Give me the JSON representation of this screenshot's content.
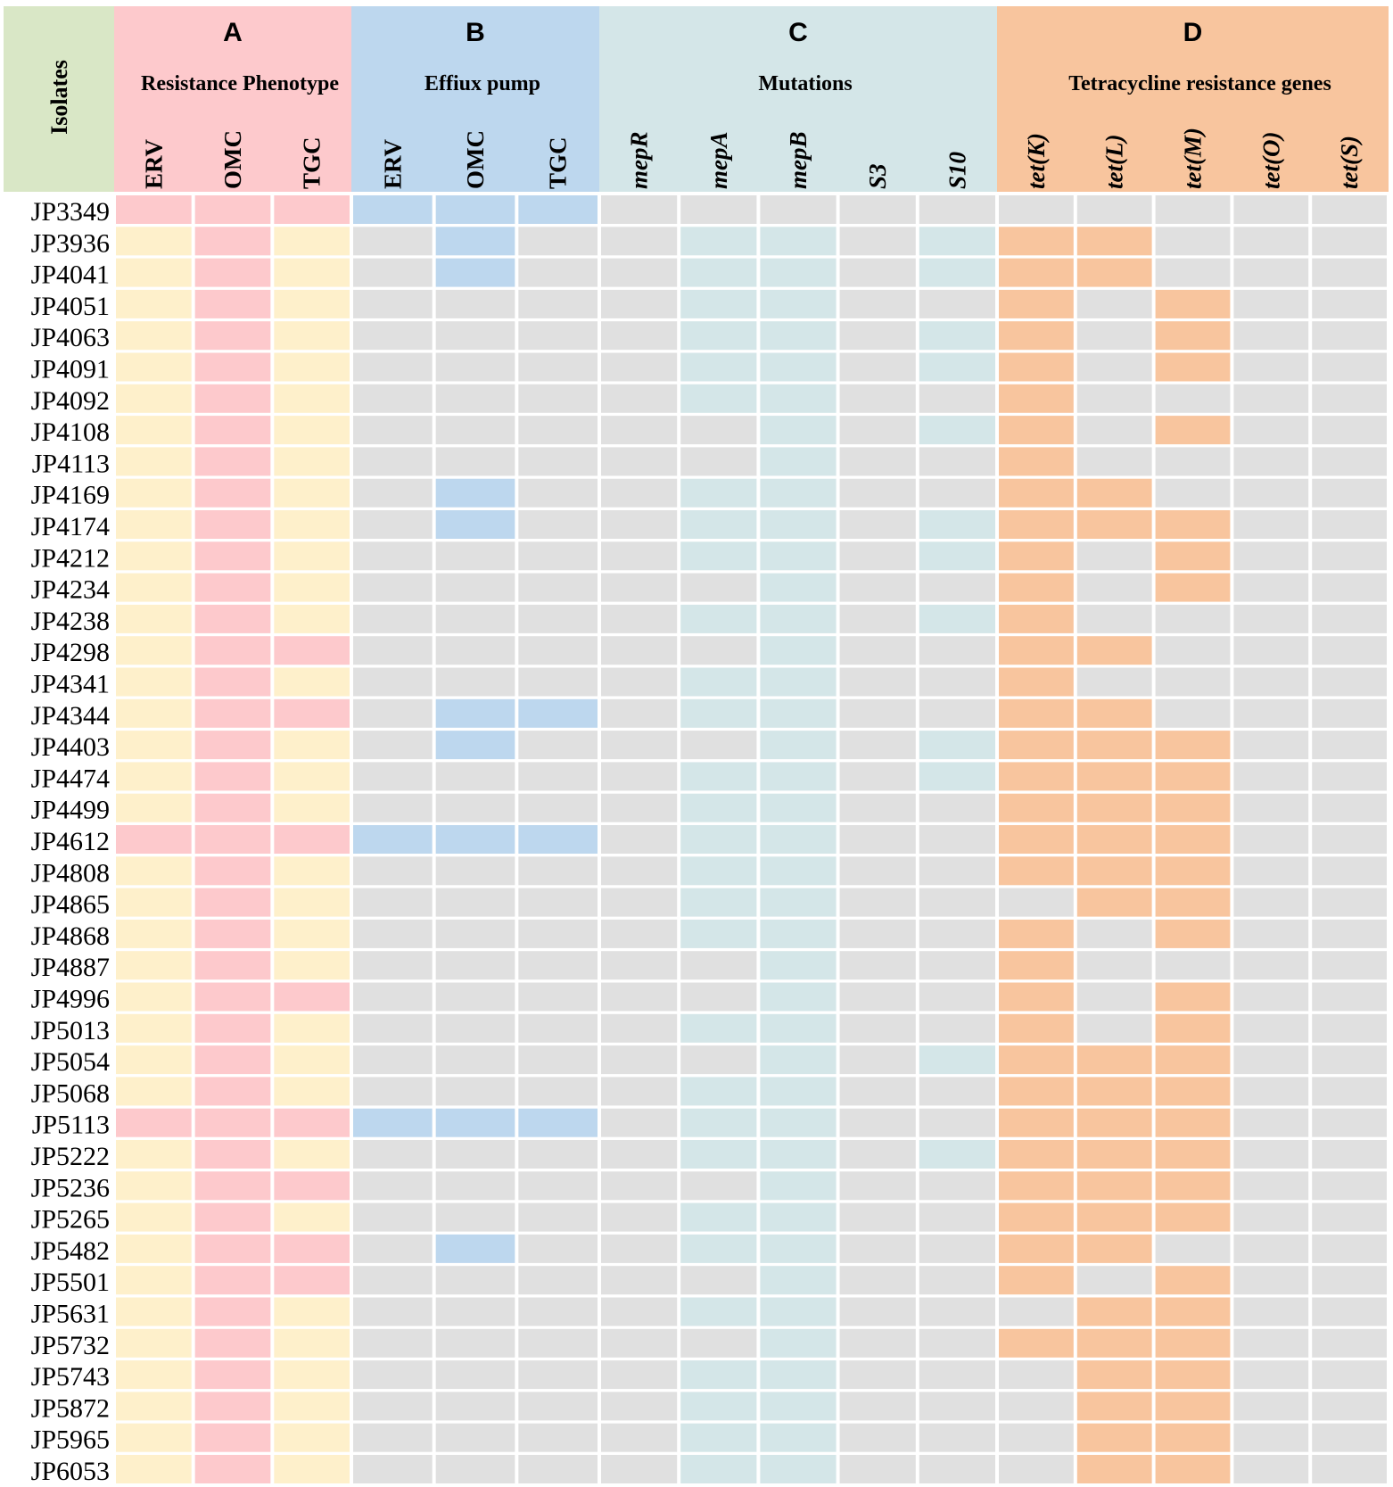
{
  "chart_data": {
    "type": "heatmap",
    "isolates_label": "Isolates",
    "groups": [
      {
        "letter": "A",
        "title": "Resistance Phenotype",
        "columns": [
          "ERV",
          "OMC",
          "TGC"
        ],
        "italic": false,
        "on_color": "#fdc9cc",
        "off_color": "#fef0cb"
      },
      {
        "letter": "B",
        "title": "Effiux pump",
        "columns": [
          "ERV",
          "OMC",
          "TGC"
        ],
        "italic": false,
        "on_color": "#bdd7ee",
        "off_color": "#e0e0e0"
      },
      {
        "letter": "C",
        "title": "Mutations",
        "columns": [
          "mepR",
          "mepA",
          "mepB",
          "S3",
          "S10"
        ],
        "italic": true,
        "on_color": "#d4e6e8",
        "off_color": "#e0e0e0"
      },
      {
        "letter": "D",
        "title": "Tetracycline resistance genes",
        "columns": [
          "tet(K)",
          "tet(L)",
          "tet(M)",
          "tet(O)",
          "tet(S)"
        ],
        "italic": true,
        "on_color": "#f8c59e",
        "off_color": "#e0e0e0"
      }
    ],
    "header_colors": {
      "isolates": "#d9e7c6",
      "A": "#fdc9cc",
      "B": "#bdd7ee",
      "C": "#d4e6e8",
      "D": "#f8c59e"
    },
    "rows": [
      {
        "isolate": "JP3349",
        "values": [
          1,
          1,
          1,
          1,
          1,
          1,
          0,
          0,
          0,
          0,
          0,
          0,
          0,
          0,
          0,
          0
        ]
      },
      {
        "isolate": "JP3936",
        "values": [
          0,
          1,
          0,
          0,
          1,
          0,
          0,
          1,
          1,
          0,
          1,
          1,
          1,
          0,
          0,
          0
        ]
      },
      {
        "isolate": "JP4041",
        "values": [
          0,
          1,
          0,
          0,
          1,
          0,
          0,
          1,
          1,
          0,
          1,
          1,
          1,
          0,
          0,
          0
        ]
      },
      {
        "isolate": "JP4051",
        "values": [
          0,
          1,
          0,
          0,
          0,
          0,
          0,
          1,
          1,
          0,
          0,
          1,
          0,
          1,
          0,
          0
        ]
      },
      {
        "isolate": "JP4063",
        "values": [
          0,
          1,
          0,
          0,
          0,
          0,
          0,
          1,
          1,
          0,
          1,
          1,
          0,
          1,
          0,
          0
        ]
      },
      {
        "isolate": "JP4091",
        "values": [
          0,
          1,
          0,
          0,
          0,
          0,
          0,
          1,
          1,
          0,
          1,
          1,
          0,
          1,
          0,
          0
        ]
      },
      {
        "isolate": "JP4092",
        "values": [
          0,
          1,
          0,
          0,
          0,
          0,
          0,
          1,
          1,
          0,
          0,
          1,
          0,
          0,
          0,
          0
        ]
      },
      {
        "isolate": "JP4108",
        "values": [
          0,
          1,
          0,
          0,
          0,
          0,
          0,
          0,
          1,
          0,
          1,
          1,
          0,
          1,
          0,
          0
        ]
      },
      {
        "isolate": "JP4113",
        "values": [
          0,
          1,
          0,
          0,
          0,
          0,
          0,
          0,
          1,
          0,
          0,
          1,
          0,
          0,
          0,
          0
        ]
      },
      {
        "isolate": "JP4169",
        "values": [
          0,
          1,
          0,
          0,
          1,
          0,
          0,
          1,
          1,
          0,
          0,
          1,
          1,
          0,
          0,
          0
        ]
      },
      {
        "isolate": "JP4174",
        "values": [
          0,
          1,
          0,
          0,
          1,
          0,
          0,
          1,
          1,
          0,
          1,
          1,
          1,
          1,
          0,
          0
        ]
      },
      {
        "isolate": "JP4212",
        "values": [
          0,
          1,
          0,
          0,
          0,
          0,
          0,
          1,
          1,
          0,
          1,
          1,
          0,
          1,
          0,
          0
        ]
      },
      {
        "isolate": "JP4234",
        "values": [
          0,
          1,
          0,
          0,
          0,
          0,
          0,
          0,
          1,
          0,
          0,
          1,
          0,
          1,
          0,
          0
        ]
      },
      {
        "isolate": "JP4238",
        "values": [
          0,
          1,
          0,
          0,
          0,
          0,
          0,
          1,
          1,
          0,
          1,
          1,
          0,
          0,
          0,
          0
        ]
      },
      {
        "isolate": "JP4298",
        "values": [
          0,
          1,
          1,
          0,
          0,
          0,
          0,
          0,
          1,
          0,
          0,
          1,
          1,
          0,
          0,
          0
        ]
      },
      {
        "isolate": "JP4341",
        "values": [
          0,
          1,
          0,
          0,
          0,
          0,
          0,
          1,
          1,
          0,
          0,
          1,
          0,
          0,
          0,
          0
        ]
      },
      {
        "isolate": "JP4344",
        "values": [
          0,
          1,
          1,
          0,
          1,
          1,
          0,
          1,
          1,
          0,
          0,
          1,
          1,
          0,
          0,
          0
        ]
      },
      {
        "isolate": "JP4403",
        "values": [
          0,
          1,
          0,
          0,
          1,
          0,
          0,
          0,
          1,
          0,
          1,
          1,
          1,
          1,
          0,
          0
        ]
      },
      {
        "isolate": "JP4474",
        "values": [
          0,
          1,
          0,
          0,
          0,
          0,
          0,
          1,
          1,
          0,
          1,
          1,
          1,
          1,
          0,
          0
        ]
      },
      {
        "isolate": "JP4499",
        "values": [
          0,
          1,
          0,
          0,
          0,
          0,
          0,
          1,
          1,
          0,
          0,
          1,
          1,
          1,
          0,
          0
        ]
      },
      {
        "isolate": "JP4612",
        "values": [
          1,
          1,
          1,
          1,
          1,
          1,
          0,
          1,
          1,
          0,
          0,
          1,
          1,
          1,
          0,
          0
        ]
      },
      {
        "isolate": "JP4808",
        "values": [
          0,
          1,
          0,
          0,
          0,
          0,
          0,
          1,
          1,
          0,
          0,
          1,
          1,
          1,
          0,
          0
        ]
      },
      {
        "isolate": "JP4865",
        "values": [
          0,
          1,
          0,
          0,
          0,
          0,
          0,
          1,
          1,
          0,
          0,
          0,
          1,
          1,
          0,
          0
        ]
      },
      {
        "isolate": "JP4868",
        "values": [
          0,
          1,
          0,
          0,
          0,
          0,
          0,
          1,
          1,
          0,
          0,
          1,
          0,
          1,
          0,
          0
        ]
      },
      {
        "isolate": "JP4887",
        "values": [
          0,
          1,
          0,
          0,
          0,
          0,
          0,
          0,
          1,
          0,
          0,
          1,
          0,
          0,
          0,
          0
        ]
      },
      {
        "isolate": "JP4996",
        "values": [
          0,
          1,
          1,
          0,
          0,
          0,
          0,
          0,
          1,
          0,
          0,
          1,
          0,
          1,
          0,
          0
        ]
      },
      {
        "isolate": "JP5013",
        "values": [
          0,
          1,
          0,
          0,
          0,
          0,
          0,
          1,
          1,
          0,
          0,
          1,
          0,
          1,
          0,
          0
        ]
      },
      {
        "isolate": "JP5054",
        "values": [
          0,
          1,
          0,
          0,
          0,
          0,
          0,
          0,
          1,
          0,
          1,
          1,
          1,
          1,
          0,
          0
        ]
      },
      {
        "isolate": "JP5068",
        "values": [
          0,
          1,
          0,
          0,
          0,
          0,
          0,
          1,
          1,
          0,
          0,
          1,
          1,
          1,
          0,
          0
        ]
      },
      {
        "isolate": "JP5113",
        "values": [
          1,
          1,
          1,
          1,
          1,
          1,
          0,
          1,
          1,
          0,
          0,
          1,
          1,
          1,
          0,
          0
        ]
      },
      {
        "isolate": "JP5222",
        "values": [
          0,
          1,
          0,
          0,
          0,
          0,
          0,
          1,
          1,
          0,
          1,
          1,
          1,
          1,
          0,
          0
        ]
      },
      {
        "isolate": "JP5236",
        "values": [
          0,
          1,
          1,
          0,
          0,
          0,
          0,
          0,
          1,
          0,
          0,
          1,
          1,
          1,
          0,
          0
        ]
      },
      {
        "isolate": "JP5265",
        "values": [
          0,
          1,
          0,
          0,
          0,
          0,
          0,
          1,
          1,
          0,
          0,
          1,
          1,
          1,
          0,
          0
        ]
      },
      {
        "isolate": "JP5482",
        "values": [
          0,
          1,
          1,
          0,
          1,
          0,
          0,
          1,
          1,
          0,
          0,
          1,
          1,
          0,
          0,
          0
        ]
      },
      {
        "isolate": "JP5501",
        "values": [
          0,
          1,
          1,
          0,
          0,
          0,
          0,
          0,
          1,
          0,
          0,
          1,
          0,
          1,
          0,
          0
        ]
      },
      {
        "isolate": "JP5631",
        "values": [
          0,
          1,
          0,
          0,
          0,
          0,
          0,
          1,
          1,
          0,
          0,
          0,
          1,
          1,
          0,
          0
        ]
      },
      {
        "isolate": "JP5732",
        "values": [
          0,
          1,
          0,
          0,
          0,
          0,
          0,
          0,
          1,
          0,
          0,
          1,
          1,
          1,
          0,
          0
        ]
      },
      {
        "isolate": "JP5743",
        "values": [
          0,
          1,
          0,
          0,
          0,
          0,
          0,
          1,
          1,
          0,
          0,
          0,
          1,
          1,
          0,
          0
        ]
      },
      {
        "isolate": "JP5872",
        "values": [
          0,
          1,
          0,
          0,
          0,
          0,
          0,
          1,
          1,
          0,
          0,
          0,
          1,
          1,
          0,
          0
        ]
      },
      {
        "isolate": "JP5965",
        "values": [
          0,
          1,
          0,
          0,
          0,
          0,
          0,
          1,
          1,
          0,
          0,
          0,
          1,
          1,
          0,
          0
        ]
      },
      {
        "isolate": "JP6053",
        "values": [
          0,
          1,
          0,
          0,
          0,
          0,
          0,
          1,
          1,
          0,
          0,
          0,
          1,
          1,
          0,
          0
        ]
      }
    ]
  }
}
